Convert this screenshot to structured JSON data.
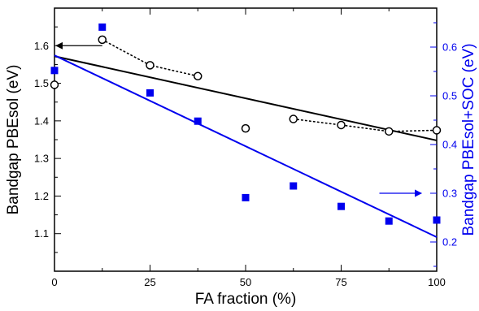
{
  "chart_data": {
    "type": "scatter",
    "xlabel": "FA fraction (%)",
    "ylabel_left": "Bandgap PBEsol (eV)",
    "ylabel_right": "Bandgap PBEsol+SOC (eV)",
    "xlim": [
      0,
      100
    ],
    "ylim_left": [
      1.0,
      1.7
    ],
    "ylim_right": [
      0.14,
      0.68
    ],
    "x_ticks": [
      0,
      25,
      50,
      75,
      100
    ],
    "y_left_ticks": [
      1.1,
      1.2,
      1.3,
      1.4,
      1.5,
      1.6
    ],
    "y_left_tick_labels": [
      "1.1",
      "1.2",
      "1.3",
      "1.4",
      "1.5",
      "1.6"
    ],
    "y_right_ticks": [
      0.2,
      0.3,
      0.4,
      0.5,
      0.6
    ],
    "y_right_tick_labels": [
      "0.2",
      "0.3",
      "0.4",
      "0.5",
      "0.6"
    ],
    "grid": false,
    "colors": {
      "pbesol": "#000000",
      "soc": "#0000ee"
    },
    "series": [
      {
        "axis": "left",
        "marker": "open-circle",
        "x": [
          0,
          12.5,
          25,
          37.5,
          50,
          62.5,
          75,
          87.5,
          100
        ],
        "y": [
          1.496,
          1.616,
          1.548,
          1.519,
          1.38,
          1.405,
          1.389,
          1.372,
          1.375
        ]
      },
      {
        "axis": "right",
        "marker": "filled-square",
        "x": [
          0,
          12.5,
          25,
          37.5,
          50,
          62.5,
          75,
          87.5,
          100
        ],
        "y": [
          0.552,
          0.641,
          0.506,
          0.448,
          0.291,
          0.315,
          0.273,
          0.243,
          0.245
        ]
      }
    ],
    "fit_lines": [
      {
        "axis": "left",
        "x": [
          0,
          100
        ],
        "y": [
          1.572,
          1.348
        ]
      },
      {
        "axis": "right",
        "x": [
          0,
          100
        ],
        "y": [
          0.583,
          0.21
        ]
      }
    ],
    "dotted_segments": [
      {
        "axis": "left",
        "x": [
          12.5,
          25,
          37.5
        ],
        "y": [
          1.616,
          1.548,
          1.519
        ]
      },
      {
        "axis": "left",
        "x": [
          62.5,
          75,
          87.5,
          100
        ],
        "y": [
          1.405,
          1.389,
          1.372,
          1.375
        ]
      }
    ],
    "annotations": [
      {
        "kind": "arrow",
        "points_to": "left-axis",
        "x_from": 12.5,
        "x_to": 0,
        "y": 1.6
      },
      {
        "kind": "arrow",
        "points_to": "right-axis",
        "x_from": 85,
        "x_to": 96,
        "y": 0.3
      }
    ]
  }
}
